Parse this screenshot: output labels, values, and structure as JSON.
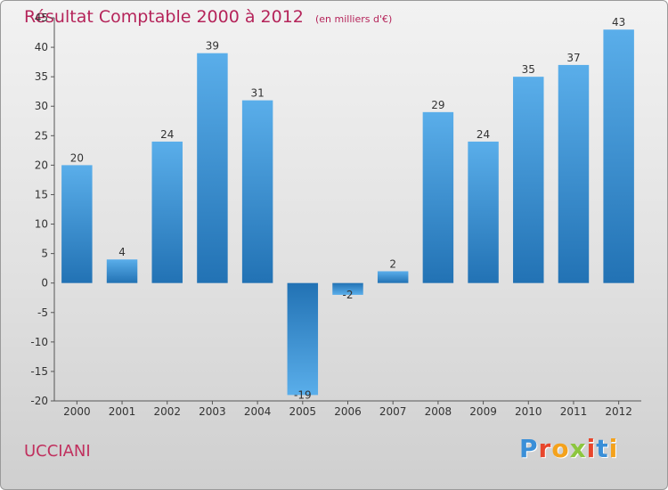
{
  "chart_data": {
    "type": "bar",
    "title": "Résultat Comptable 2000 à 2012",
    "subtitle": "(en milliers d'€)",
    "xlabel": "",
    "ylabel": "",
    "categories": [
      "2000",
      "2001",
      "2002",
      "2003",
      "2004",
      "2005",
      "2006",
      "2007",
      "2008",
      "2009",
      "2010",
      "2011",
      "2012"
    ],
    "values": [
      20,
      4,
      24,
      39,
      31,
      -19,
      -2,
      2,
      29,
      24,
      35,
      37,
      43
    ],
    "ylim": [
      -20,
      45
    ],
    "ytick_step": 5,
    "grid": false
  },
  "footer": {
    "commune": "UCCIANI",
    "logo_letters": [
      "P",
      "r",
      "o",
      "x",
      "i",
      "t",
      "i"
    ],
    "logo_colors": [
      "#3a8fd8",
      "#e8462c",
      "#f4a21c",
      "#8cc63f",
      "#e8462c",
      "#3a8fd8",
      "#f4a21c"
    ]
  },
  "colors": {
    "title": "#b5245a",
    "bar_top": "#5aaeea",
    "bar_bottom": "#2272b4"
  }
}
